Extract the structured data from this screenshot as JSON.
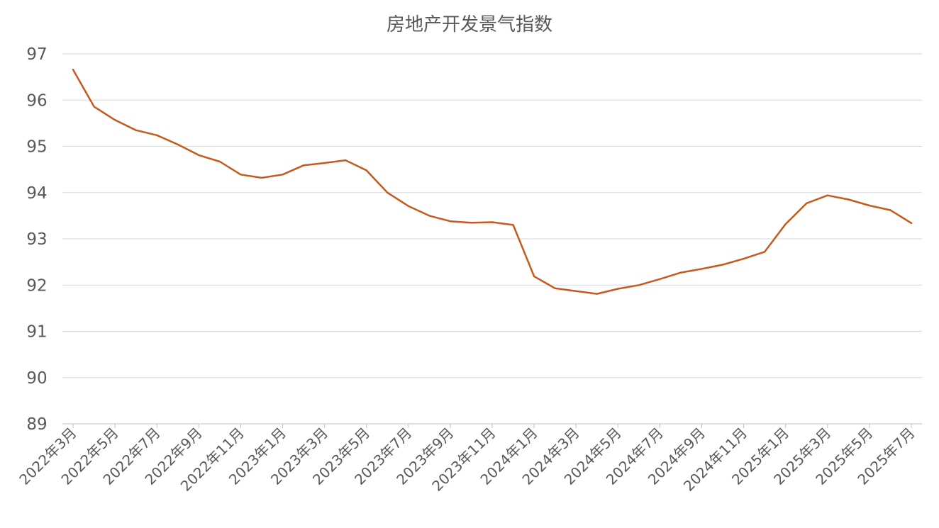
{
  "chart_data": {
    "type": "line",
    "title": "房地产开发景气指数",
    "xlabel": "",
    "ylabel": "",
    "ylim": [
      89,
      97
    ],
    "yticks": [
      "89",
      "90",
      "91",
      "92",
      "93",
      "94",
      "95",
      "96",
      "97"
    ],
    "grid": true,
    "line_color": "#C55A1E",
    "x": [
      "2022年3月",
      "2022年4月",
      "2022年5月",
      "2022年6月",
      "2022年7月",
      "2022年8月",
      "2022年9月",
      "2022年10月",
      "2022年11月",
      "2022年12月",
      "2023年1月",
      "2023年2月",
      "2023年3月",
      "2023年4月",
      "2023年5月",
      "2023年6月",
      "2023年7月",
      "2023年8月",
      "2023年9月",
      "2023年10月",
      "2023年11月",
      "2023年12月",
      "2024年1月",
      "2024年2月",
      "2024年3月",
      "2024年4月",
      "2024年5月",
      "2024年6月",
      "2024年7月",
      "2024年8月",
      "2024年9月",
      "2024年10月",
      "2024年11月",
      "2024年12月",
      "2025年1月",
      "2025年2月",
      "2025年3月",
      "2025年4月",
      "2025年5月",
      "2025年6月",
      "2025年7月"
    ],
    "xtick_labels": [
      "2022年3月",
      "2022年5月",
      "2022年7月",
      "2022年9月",
      "2022年11月",
      "2023年1月",
      "2023年3月",
      "2023年5月",
      "2023年7月",
      "2023年9月",
      "2023年11月",
      "2024年1月",
      "2024年3月",
      "2024年5月",
      "2024年7月",
      "2024年9月",
      "2024年11月",
      "2025年1月",
      "2025年3月",
      "2025年5月",
      "2025年7月"
    ],
    "series": [
      {
        "values": [
          96.66,
          95.86,
          95.57,
          95.35,
          95.24,
          95.04,
          94.81,
          94.67,
          94.39,
          94.32,
          94.39,
          94.59,
          94.64,
          94.7,
          94.48,
          94.0,
          93.71,
          93.5,
          93.38,
          93.35,
          93.36,
          93.3,
          92.19,
          91.93,
          91.87,
          91.81,
          91.92,
          92.0,
          92.13,
          92.27,
          92.35,
          92.44,
          92.57,
          92.72,
          93.32,
          93.77,
          93.94,
          93.85,
          93.72,
          93.62,
          93.34
        ]
      }
    ]
  }
}
